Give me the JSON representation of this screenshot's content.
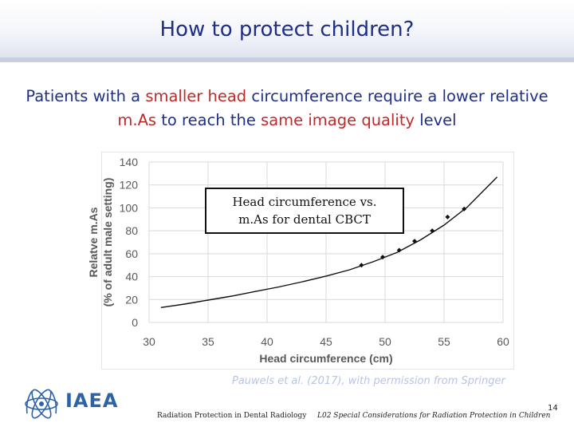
{
  "slide": {
    "title": "How to protect children?",
    "subtitle_parts": [
      {
        "text": "Patients with a ",
        "highlight": false
      },
      {
        "text": "smaller head",
        "highlight": true
      },
      {
        "text": " circumference require a lower relative ",
        "highlight": false
      },
      {
        "text": "m.As",
        "highlight": true
      },
      {
        "text": " to reach the ",
        "highlight": false
      },
      {
        "text": "same image quality",
        "highlight": true
      },
      {
        "text": " level",
        "highlight": false
      }
    ],
    "annotation_line1": "Head circumference vs.",
    "annotation_line2": "m.As for dental CBCT",
    "citation": "Pauwels et al. (2017), with permission from Springer",
    "logo_text": "IAEA",
    "footer_left": "Radiation Protection in Dental Radiology",
    "footer_mid": "L02 Special Considerations for Radiation Protection in Children",
    "page_number": "14",
    "colors": {
      "title": "#1f2f88",
      "highlight": "#c0292a",
      "logo": "#2d62a8",
      "citation": "#b8c4e6"
    }
  },
  "chart_data": {
    "type": "scatter",
    "xlabel": "Head circumference (cm)",
    "ylabel_line1": "Relatve m.As",
    "ylabel_line2": "(% of adult male setting)",
    "xlim": [
      30,
      60
    ],
    "ylim": [
      0,
      140
    ],
    "x_ticks": [
      30,
      35,
      40,
      45,
      50,
      55,
      60
    ],
    "y_ticks": [
      0,
      20,
      40,
      60,
      80,
      100,
      120,
      140
    ],
    "grid": true,
    "series": [
      {
        "kind": "curve",
        "x": [
          31,
          33,
          35,
          37,
          39,
          41,
          43,
          45,
          47,
          49,
          51,
          53,
          55,
          57,
          59.5
        ],
        "y": [
          13,
          16,
          19.5,
          23,
          27,
          31,
          35.5,
          40.5,
          46,
          53,
          61,
          72,
          85,
          101,
          127
        ]
      },
      {
        "kind": "points",
        "x": [
          48,
          49.8,
          51.2,
          52.5,
          54,
          55.3,
          56.7
        ],
        "y": [
          50,
          57,
          63,
          71,
          80,
          92,
          99
        ]
      }
    ]
  }
}
